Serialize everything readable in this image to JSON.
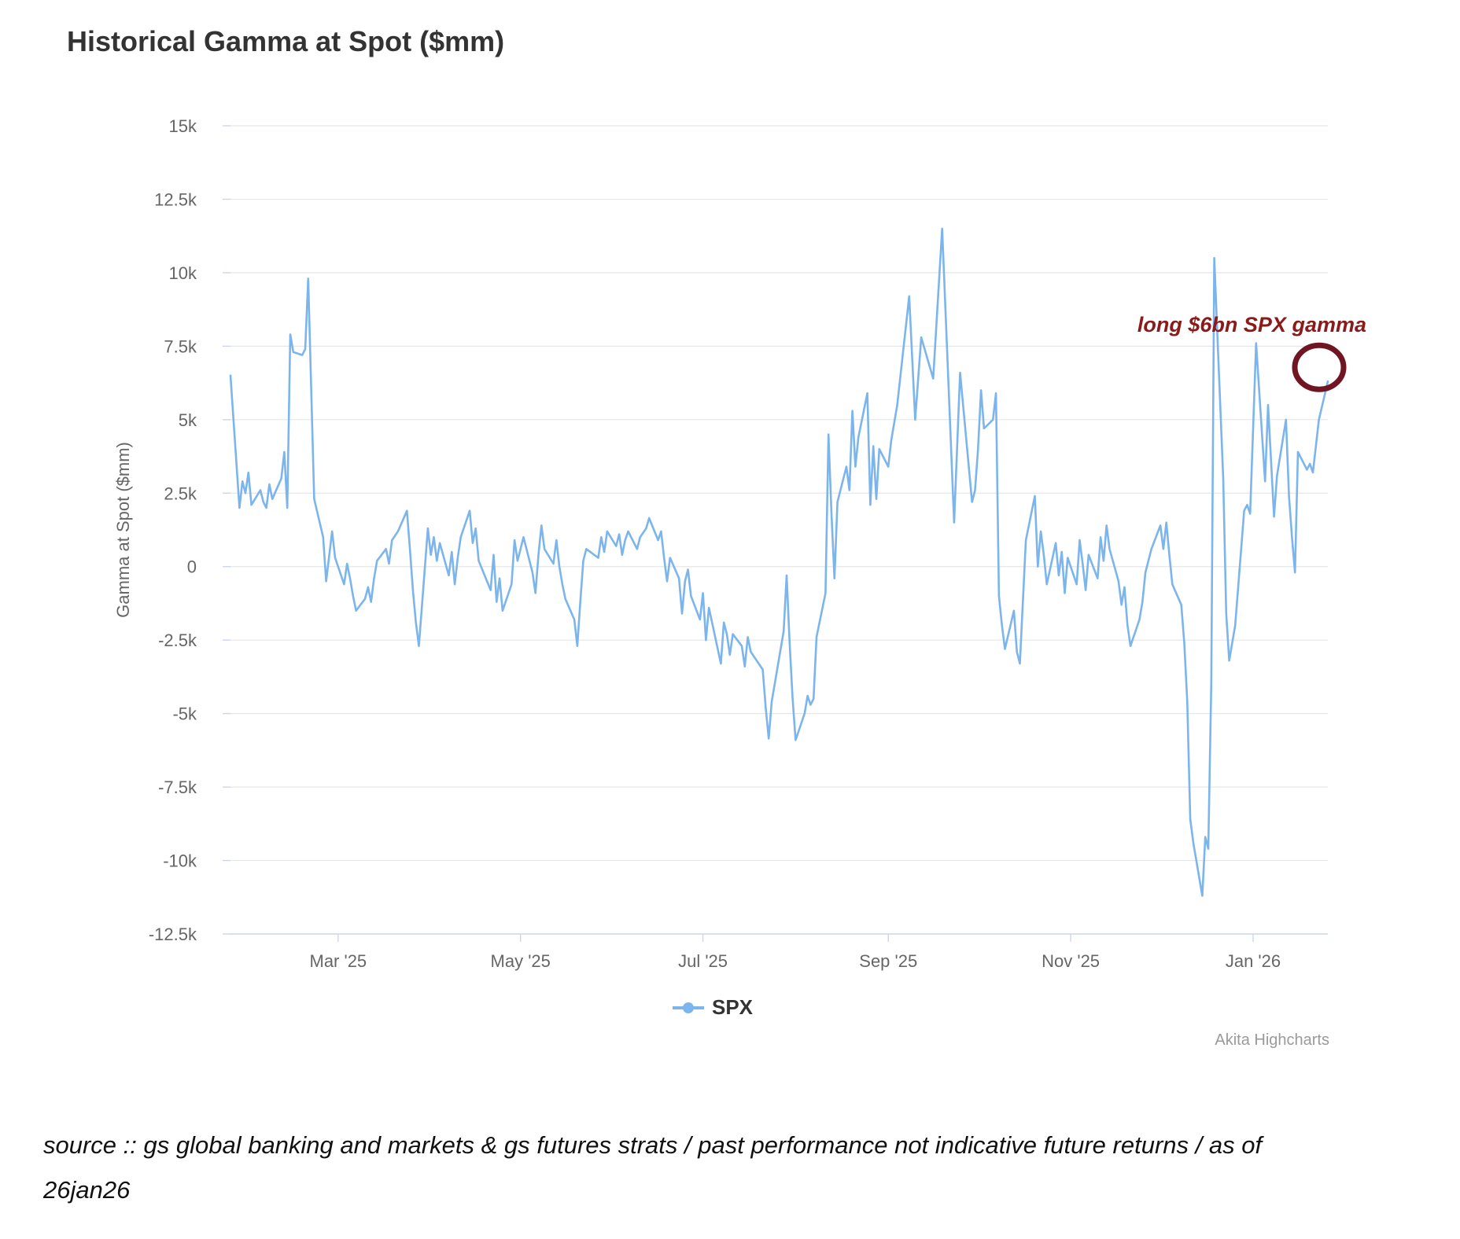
{
  "title": "Historical Gamma at Spot ($mm)",
  "legend": {
    "items": [
      {
        "label": "SPX",
        "color": "#7cb5ec"
      }
    ]
  },
  "credits": "Akita Highcharts",
  "annotation": {
    "text": "long $6bn SPX gamma",
    "text_color": "#8b1a1a",
    "circle_color": "#701522"
  },
  "source_note": {
    "line1": "source :: gs global banking and markets & gs futures strats / past performance not indicative future returns / as of",
    "line2": "26jan26"
  },
  "chart_data": {
    "type": "line",
    "title": "Historical Gamma at Spot ($mm)",
    "xlabel": "",
    "ylabel": "Gamma at Spot ($mm)",
    "ylim": [
      -12500,
      15000
    ],
    "grid": true,
    "legend_position": "bottom-center",
    "line_color": "#7cb5ec",
    "grid_color": "#e6e6e6",
    "axis_line_color": "#ccd6eb",
    "tick_label_color": "#666666",
    "x_range": [
      "2025-01-24",
      "2026-01-26"
    ],
    "yticks": [
      {
        "v": 15000,
        "label": "15k"
      },
      {
        "v": 12500,
        "label": "12.5k"
      },
      {
        "v": 10000,
        "label": "10k"
      },
      {
        "v": 7500,
        "label": "7.5k"
      },
      {
        "v": 5000,
        "label": "5k"
      },
      {
        "v": 2500,
        "label": "2.5k"
      },
      {
        "v": 0,
        "label": "0"
      },
      {
        "v": -2500,
        "label": "-2.5k"
      },
      {
        "v": -5000,
        "label": "-5k"
      },
      {
        "v": -7500,
        "label": "-7.5k"
      },
      {
        "v": -10000,
        "label": "-10k"
      },
      {
        "v": -12500,
        "label": "-12.5k"
      }
    ],
    "xticks": [
      {
        "date": "2025-03-01",
        "label": "Mar '25"
      },
      {
        "date": "2025-05-01",
        "label": "May '25"
      },
      {
        "date": "2025-07-01",
        "label": "Jul '25"
      },
      {
        "date": "2025-09-01",
        "label": "Sep '25"
      },
      {
        "date": "2025-11-01",
        "label": "Nov '25"
      },
      {
        "date": "2026-01-01",
        "label": "Jan '26"
      }
    ],
    "annotations": [
      {
        "type": "circled-point",
        "date": "2026-01-26",
        "value": 6300,
        "label": "long $6bn SPX gamma"
      }
    ],
    "series": [
      {
        "name": "SPX",
        "color": "#7cb5ec",
        "points": [
          [
            "2025-01-24",
            6500
          ],
          [
            "2025-01-27",
            2000
          ],
          [
            "2025-01-28",
            2900
          ],
          [
            "2025-01-29",
            2500
          ],
          [
            "2025-01-30",
            3200
          ],
          [
            "2025-01-31",
            2100
          ],
          [
            "2025-02-03",
            2600
          ],
          [
            "2025-02-04",
            2200
          ],
          [
            "2025-02-05",
            2000
          ],
          [
            "2025-02-06",
            2800
          ],
          [
            "2025-02-07",
            2300
          ],
          [
            "2025-02-10",
            3000
          ],
          [
            "2025-02-11",
            3900
          ],
          [
            "2025-02-12",
            2000
          ],
          [
            "2025-02-13",
            7900
          ],
          [
            "2025-02-14",
            7300
          ],
          [
            "2025-02-17",
            7200
          ],
          [
            "2025-02-18",
            7400
          ],
          [
            "2025-02-19",
            9800
          ],
          [
            "2025-02-21",
            2300
          ],
          [
            "2025-02-24",
            1000
          ],
          [
            "2025-02-25",
            -500
          ],
          [
            "2025-02-27",
            1200
          ],
          [
            "2025-02-28",
            300
          ],
          [
            "2025-03-03",
            -600
          ],
          [
            "2025-03-04",
            100
          ],
          [
            "2025-03-05",
            -400
          ],
          [
            "2025-03-06",
            -1000
          ],
          [
            "2025-03-07",
            -1500
          ],
          [
            "2025-03-10",
            -1100
          ],
          [
            "2025-03-11",
            -700
          ],
          [
            "2025-03-12",
            -1200
          ],
          [
            "2025-03-13",
            -400
          ],
          [
            "2025-03-14",
            200
          ],
          [
            "2025-03-17",
            600
          ],
          [
            "2025-03-18",
            100
          ],
          [
            "2025-03-19",
            900
          ],
          [
            "2025-03-21",
            1200
          ],
          [
            "2025-03-24",
            1900
          ],
          [
            "2025-03-25",
            600
          ],
          [
            "2025-03-26",
            -800
          ],
          [
            "2025-03-27",
            -1900
          ],
          [
            "2025-03-28",
            -2700
          ],
          [
            "2025-03-31",
            1300
          ],
          [
            "2025-04-01",
            400
          ],
          [
            "2025-04-02",
            1000
          ],
          [
            "2025-04-03",
            200
          ],
          [
            "2025-04-04",
            800
          ],
          [
            "2025-04-07",
            -300
          ],
          [
            "2025-04-08",
            500
          ],
          [
            "2025-04-09",
            -600
          ],
          [
            "2025-04-10",
            300
          ],
          [
            "2025-04-11",
            1000
          ],
          [
            "2025-04-14",
            1900
          ],
          [
            "2025-04-15",
            800
          ],
          [
            "2025-04-16",
            1300
          ],
          [
            "2025-04-17",
            200
          ],
          [
            "2025-04-21",
            -800
          ],
          [
            "2025-04-22",
            400
          ],
          [
            "2025-04-23",
            -1200
          ],
          [
            "2025-04-24",
            -400
          ],
          [
            "2025-04-25",
            -1500
          ],
          [
            "2025-04-28",
            -600
          ],
          [
            "2025-04-29",
            900
          ],
          [
            "2025-04-30",
            200
          ],
          [
            "2025-05-02",
            1000
          ],
          [
            "2025-05-05",
            -200
          ],
          [
            "2025-05-06",
            -900
          ],
          [
            "2025-05-07",
            400
          ],
          [
            "2025-05-08",
            1400
          ],
          [
            "2025-05-09",
            600
          ],
          [
            "2025-05-12",
            100
          ],
          [
            "2025-05-13",
            900
          ],
          [
            "2025-05-14",
            0
          ],
          [
            "2025-05-15",
            -600
          ],
          [
            "2025-05-16",
            -1100
          ],
          [
            "2025-05-19",
            -1800
          ],
          [
            "2025-05-20",
            -2700
          ],
          [
            "2025-05-21",
            -1200
          ],
          [
            "2025-05-22",
            200
          ],
          [
            "2025-05-23",
            600
          ],
          [
            "2025-05-27",
            300
          ],
          [
            "2025-05-28",
            1000
          ],
          [
            "2025-05-29",
            500
          ],
          [
            "2025-05-30",
            1200
          ],
          [
            "2025-06-02",
            700
          ],
          [
            "2025-06-03",
            1100
          ],
          [
            "2025-06-04",
            400
          ],
          [
            "2025-06-05",
            900
          ],
          [
            "2025-06-06",
            1200
          ],
          [
            "2025-06-09",
            600
          ],
          [
            "2025-06-10",
            1000
          ],
          [
            "2025-06-12",
            1300
          ],
          [
            "2025-06-13",
            1650
          ],
          [
            "2025-06-16",
            900
          ],
          [
            "2025-06-17",
            1200
          ],
          [
            "2025-06-18",
            300
          ],
          [
            "2025-06-19",
            -500
          ],
          [
            "2025-06-20",
            300
          ],
          [
            "2025-06-23",
            -400
          ],
          [
            "2025-06-24",
            -1600
          ],
          [
            "2025-06-25",
            -500
          ],
          [
            "2025-06-26",
            -100
          ],
          [
            "2025-06-27",
            -1000
          ],
          [
            "2025-06-30",
            -1800
          ],
          [
            "2025-07-01",
            -900
          ],
          [
            "2025-07-02",
            -2500
          ],
          [
            "2025-07-03",
            -1400
          ],
          [
            "2025-07-07",
            -3300
          ],
          [
            "2025-07-08",
            -1900
          ],
          [
            "2025-07-09",
            -2300
          ],
          [
            "2025-07-10",
            -3000
          ],
          [
            "2025-07-11",
            -2300
          ],
          [
            "2025-07-14",
            -2700
          ],
          [
            "2025-07-15",
            -3400
          ],
          [
            "2025-07-16",
            -2400
          ],
          [
            "2025-07-17",
            -2900
          ],
          [
            "2025-07-21",
            -3500
          ],
          [
            "2025-07-22",
            -4800
          ],
          [
            "2025-07-23",
            -5850
          ],
          [
            "2025-07-24",
            -4600
          ],
          [
            "2025-07-28",
            -2200
          ],
          [
            "2025-07-29",
            -300
          ],
          [
            "2025-07-30",
            -2600
          ],
          [
            "2025-07-31",
            -4500
          ],
          [
            "2025-08-01",
            -5900
          ],
          [
            "2025-08-04",
            -5000
          ],
          [
            "2025-08-05",
            -4400
          ],
          [
            "2025-08-06",
            -4700
          ],
          [
            "2025-08-07",
            -4500
          ],
          [
            "2025-08-08",
            -2400
          ],
          [
            "2025-08-11",
            -900
          ],
          [
            "2025-08-12",
            4500
          ],
          [
            "2025-08-13",
            1800
          ],
          [
            "2025-08-14",
            -400
          ],
          [
            "2025-08-15",
            2200
          ],
          [
            "2025-08-18",
            3400
          ],
          [
            "2025-08-19",
            2600
          ],
          [
            "2025-08-20",
            5300
          ],
          [
            "2025-08-21",
            3400
          ],
          [
            "2025-08-22",
            4400
          ],
          [
            "2025-08-25",
            5900
          ],
          [
            "2025-08-26",
            2100
          ],
          [
            "2025-08-27",
            4100
          ],
          [
            "2025-08-28",
            2300
          ],
          [
            "2025-08-29",
            4000
          ],
          [
            "2025-09-01",
            3400
          ],
          [
            "2025-09-02",
            4300
          ],
          [
            "2025-09-04",
            5500
          ],
          [
            "2025-09-08",
            9200
          ],
          [
            "2025-09-10",
            5000
          ],
          [
            "2025-09-12",
            7800
          ],
          [
            "2025-09-16",
            6400
          ],
          [
            "2025-09-19",
            11500
          ],
          [
            "2025-09-23",
            1500
          ],
          [
            "2025-09-25",
            6600
          ],
          [
            "2025-09-29",
            2200
          ],
          [
            "2025-09-30",
            2600
          ],
          [
            "2025-10-01",
            4000
          ],
          [
            "2025-10-02",
            6000
          ],
          [
            "2025-10-03",
            4700
          ],
          [
            "2025-10-06",
            5000
          ],
          [
            "2025-10-07",
            5900
          ],
          [
            "2025-10-08",
            -1000
          ],
          [
            "2025-10-09",
            -2000
          ],
          [
            "2025-10-10",
            -2800
          ],
          [
            "2025-10-13",
            -1500
          ],
          [
            "2025-10-14",
            -2900
          ],
          [
            "2025-10-15",
            -3300
          ],
          [
            "2025-10-16",
            -1200
          ],
          [
            "2025-10-17",
            900
          ],
          [
            "2025-10-20",
            2400
          ],
          [
            "2025-10-21",
            0
          ],
          [
            "2025-10-22",
            1200
          ],
          [
            "2025-10-23",
            400
          ],
          [
            "2025-10-24",
            -600
          ],
          [
            "2025-10-27",
            800
          ],
          [
            "2025-10-28",
            -300
          ],
          [
            "2025-10-29",
            500
          ],
          [
            "2025-10-30",
            -900
          ],
          [
            "2025-10-31",
            300
          ],
          [
            "2025-11-03",
            -600
          ],
          [
            "2025-11-04",
            900
          ],
          [
            "2025-11-05",
            100
          ],
          [
            "2025-11-06",
            -800
          ],
          [
            "2025-11-07",
            400
          ],
          [
            "2025-11-10",
            -400
          ],
          [
            "2025-11-11",
            1000
          ],
          [
            "2025-11-12",
            200
          ],
          [
            "2025-11-13",
            1400
          ],
          [
            "2025-11-14",
            600
          ],
          [
            "2025-11-17",
            -500
          ],
          [
            "2025-11-18",
            -1300
          ],
          [
            "2025-11-19",
            -700
          ],
          [
            "2025-11-20",
            -2000
          ],
          [
            "2025-11-21",
            -2700
          ],
          [
            "2025-11-24",
            -1800
          ],
          [
            "2025-11-25",
            -1200
          ],
          [
            "2025-11-26",
            -200
          ],
          [
            "2025-11-28",
            600
          ],
          [
            "2025-12-01",
            1400
          ],
          [
            "2025-12-02",
            600
          ],
          [
            "2025-12-03",
            1500
          ],
          [
            "2025-12-04",
            400
          ],
          [
            "2025-12-05",
            -600
          ],
          [
            "2025-12-08",
            -1300
          ],
          [
            "2025-12-09",
            -2600
          ],
          [
            "2025-12-10",
            -4600
          ],
          [
            "2025-12-11",
            -8600
          ],
          [
            "2025-12-12",
            -9400
          ],
          [
            "2025-12-15",
            -11200
          ],
          [
            "2025-12-16",
            -9200
          ],
          [
            "2025-12-17",
            -9600
          ],
          [
            "2025-12-18",
            -4000
          ],
          [
            "2025-12-19",
            10500
          ],
          [
            "2025-12-22",
            3000
          ],
          [
            "2025-12-23",
            -1600
          ],
          [
            "2025-12-24",
            -3200
          ],
          [
            "2025-12-26",
            -2000
          ],
          [
            "2025-12-29",
            1900
          ],
          [
            "2025-12-30",
            2100
          ],
          [
            "2025-12-31",
            1800
          ],
          [
            "2026-01-02",
            7600
          ],
          [
            "2026-01-05",
            2900
          ],
          [
            "2026-01-06",
            5500
          ],
          [
            "2026-01-08",
            1700
          ],
          [
            "2026-01-09",
            3100
          ],
          [
            "2026-01-12",
            5000
          ],
          [
            "2026-01-13",
            2400
          ],
          [
            "2026-01-14",
            1000
          ],
          [
            "2026-01-15",
            -200
          ],
          [
            "2026-01-16",
            3900
          ],
          [
            "2026-01-19",
            3300
          ],
          [
            "2026-01-20",
            3500
          ],
          [
            "2026-01-21",
            3200
          ],
          [
            "2026-01-22",
            4100
          ],
          [
            "2026-01-23",
            5000
          ],
          [
            "2026-01-26",
            6300
          ]
        ]
      }
    ]
  }
}
